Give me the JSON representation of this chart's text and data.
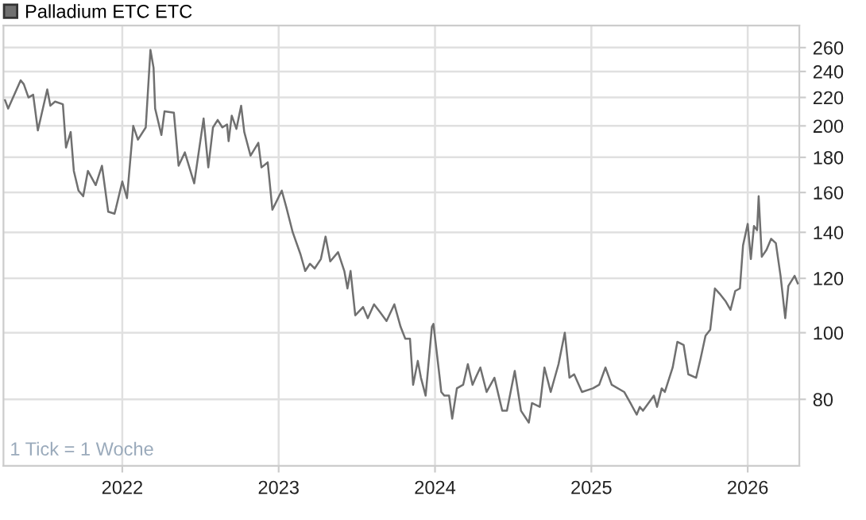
{
  "chart_data": {
    "type": "line",
    "log": "y",
    "grid": true,
    "legend": "top left",
    "xlim": [
      2021.24,
      2026.33
    ],
    "ylim": [
      64,
      280
    ],
    "xticks": [
      2022,
      2023,
      2024,
      2025,
      2026
    ],
    "yticks": [
      80,
      100,
      120,
      140,
      160,
      180,
      200,
      220,
      240,
      260
    ],
    "annotations": [
      "1 Tick = 1 Woche"
    ],
    "series": [
      {
        "name": "Palladium ETC ETC",
        "color": "#707070",
        "x": [
          2021.25,
          2021.27,
          2021.35,
          2021.37,
          2021.4,
          2021.43,
          2021.46,
          2021.52,
          2021.54,
          2021.57,
          2021.62,
          2021.64,
          2021.67,
          2021.69,
          2021.72,
          2021.75,
          2021.78,
          2021.83,
          2021.87,
          2021.91,
          2021.95,
          2021.96,
          2022.0,
          2022.03,
          2022.07,
          2022.1,
          2022.15,
          2022.18,
          2022.2,
          2022.21,
          2022.25,
          2022.27,
          2022.33,
          2022.36,
          2022.4,
          2022.46,
          2022.52,
          2022.55,
          2022.58,
          2022.61,
          2022.64,
          2022.67,
          2022.68,
          2022.7,
          2022.73,
          2022.76,
          2022.78,
          2022.82,
          2022.87,
          2022.89,
          2022.93,
          2022.96,
          2023.02,
          2023.05,
          2023.09,
          2023.14,
          2023.17,
          2023.2,
          2023.23,
          2023.27,
          2023.3,
          2023.33,
          2023.38,
          2023.42,
          2023.44,
          2023.46,
          2023.49,
          2023.54,
          2023.57,
          2023.61,
          2023.65,
          2023.69,
          2023.74,
          2023.78,
          2023.81,
          2023.84,
          2023.86,
          2023.89,
          2023.91,
          2023.94,
          2023.98,
          2023.99,
          2024.03,
          2024.04,
          2024.06,
          2024.09,
          2024.11,
          2024.14,
          2024.18,
          2024.21,
          2024.24,
          2024.26,
          2024.29,
          2024.33,
          2024.38,
          2024.43,
          2024.46,
          2024.51,
          2024.55,
          2024.6,
          2024.62,
          2024.67,
          2024.7,
          2024.74,
          2024.79,
          2024.83,
          2024.86,
          2024.89,
          2024.94,
          2025.01,
          2025.05,
          2025.09,
          2025.13,
          2025.21,
          2025.25,
          2025.29,
          2025.31,
          2025.33,
          2025.4,
          2025.42,
          2025.45,
          2025.47,
          2025.52,
          2025.55,
          2025.59,
          2025.62,
          2025.67,
          2025.7,
          2025.73,
          2025.76,
          2025.79,
          2025.82,
          2025.86,
          2025.89,
          2025.92,
          2025.95,
          2025.97,
          2026.0,
          2026.02,
          2026.04,
          2026.06,
          2026.07,
          2026.09,
          2026.12,
          2026.15,
          2026.18,
          2026.21,
          2026.24,
          2026.26,
          2026.3,
          2026.32
        ],
        "values": [
          218,
          212,
          233,
          230,
          220,
          222,
          197,
          226,
          214,
          217,
          215,
          186,
          196,
          172,
          161,
          158,
          172,
          164,
          175,
          150,
          149,
          152,
          166,
          157,
          200,
          191,
          199,
          258,
          243,
          212,
          194,
          210,
          209,
          175,
          183,
          165,
          205,
          174,
          199,
          204,
          199,
          201,
          190,
          207,
          198,
          214,
          196,
          181,
          189,
          174,
          177,
          151,
          161,
          152,
          140,
          130,
          123,
          126,
          124,
          128,
          138,
          127,
          131,
          123,
          116,
          123,
          106,
          109,
          105,
          110,
          107,
          104,
          110,
          102,
          98,
          98,
          84,
          91,
          86,
          81,
          102,
          103,
          86,
          82,
          81,
          81,
          75,
          83,
          84,
          90,
          84,
          86,
          89,
          82,
          86,
          77,
          77,
          88,
          77,
          74,
          79,
          78,
          89,
          82,
          90,
          100,
          86,
          87,
          82,
          83,
          84,
          89,
          84,
          82,
          79,
          76,
          78,
          77,
          81,
          78,
          83,
          82,
          89,
          97,
          96,
          87,
          86,
          92,
          99,
          101,
          116,
          114,
          111,
          108,
          115,
          116,
          134,
          144,
          128,
          143,
          141,
          158,
          129,
          132,
          137,
          135,
          121,
          105,
          117,
          121,
          118
        ]
      }
    ]
  }
}
